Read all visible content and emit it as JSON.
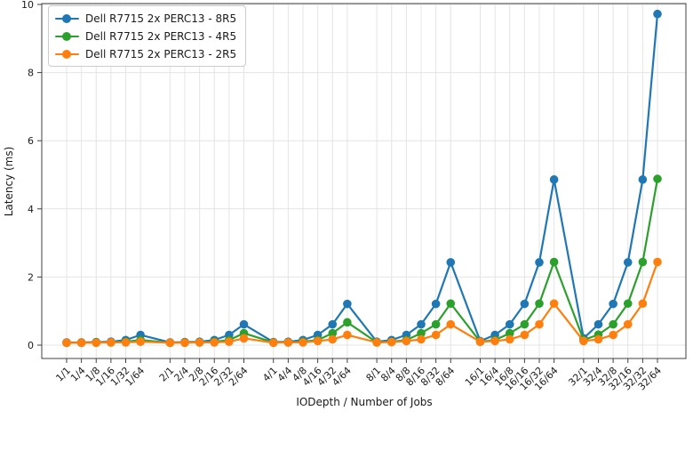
{
  "chart_data": {
    "type": "line",
    "title": "",
    "xlabel": "IODepth / Number of Jobs",
    "ylabel": "Latency (ms)",
    "ylim": [
      0,
      10
    ],
    "yticks": [
      0,
      2,
      4,
      6,
      8,
      10
    ],
    "grid": true,
    "legend_position": "upper-left",
    "group_size": 6,
    "categories": [
      "1/1",
      "1/4",
      "1/8",
      "1/16",
      "1/32",
      "1/64",
      "2/1",
      "2/4",
      "2/8",
      "2/16",
      "2/32",
      "2/64",
      "4/1",
      "4/4",
      "4/8",
      "4/16",
      "4/32",
      "4/64",
      "8/1",
      "8/4",
      "8/8",
      "8/16",
      "8/32",
      "8/64",
      "16/1",
      "16/4",
      "16/8",
      "16/16",
      "16/32",
      "16/64",
      "32/1",
      "32/4",
      "32/8",
      "32/16",
      "32/32",
      "32/64"
    ],
    "series": [
      {
        "name": "Dell R7715 2x PERC13 - 8R5",
        "color": "#1f77b4",
        "values": [
          0.08,
          0.08,
          0.09,
          0.1,
          0.15,
          0.3,
          0.08,
          0.09,
          0.1,
          0.15,
          0.3,
          0.61,
          0.09,
          0.1,
          0.15,
          0.3,
          0.61,
          1.21,
          0.1,
          0.15,
          0.3,
          0.61,
          1.21,
          2.43,
          0.12,
          0.3,
          0.61,
          1.21,
          2.43,
          4.86,
          0.2,
          0.61,
          1.21,
          2.43,
          4.86,
          9.72
        ]
      },
      {
        "name": "Dell R7715 2x PERC13 - 4R5",
        "color": "#2ca02c",
        "values": [
          0.07,
          0.07,
          0.08,
          0.08,
          0.1,
          0.15,
          0.07,
          0.08,
          0.08,
          0.1,
          0.15,
          0.35,
          0.08,
          0.08,
          0.1,
          0.15,
          0.35,
          0.67,
          0.08,
          0.1,
          0.15,
          0.35,
          0.61,
          1.22,
          0.1,
          0.15,
          0.35,
          0.61,
          1.22,
          2.44,
          0.15,
          0.31,
          0.61,
          1.22,
          2.44,
          4.88
        ]
      },
      {
        "name": "Dell R7715 2x PERC13 - 2R5",
        "color": "#ff7f0e",
        "values": [
          0.07,
          0.07,
          0.07,
          0.08,
          0.08,
          0.1,
          0.07,
          0.07,
          0.08,
          0.08,
          0.1,
          0.2,
          0.07,
          0.08,
          0.08,
          0.12,
          0.17,
          0.3,
          0.08,
          0.09,
          0.12,
          0.17,
          0.3,
          0.61,
          0.1,
          0.12,
          0.17,
          0.3,
          0.61,
          1.22,
          0.12,
          0.17,
          0.3,
          0.61,
          1.22,
          2.44
        ]
      }
    ]
  }
}
